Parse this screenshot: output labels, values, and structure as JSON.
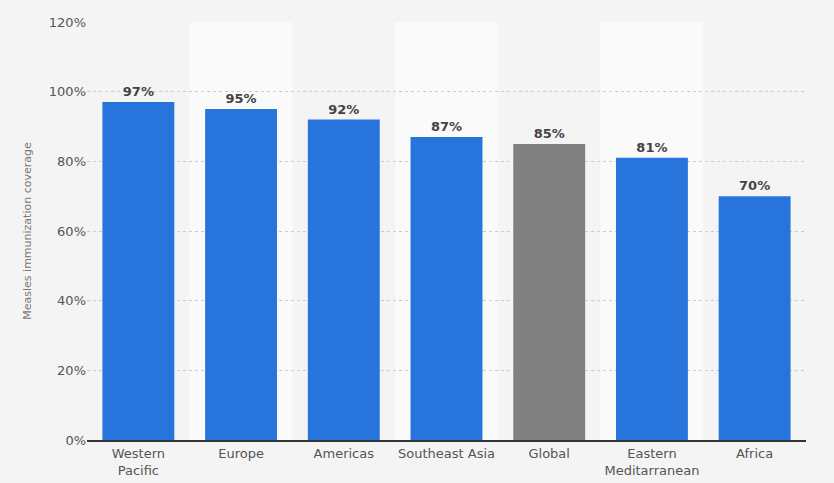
{
  "chart_data": {
    "type": "bar",
    "y_label": "Measles immunization coverage",
    "categories": [
      "Western Pacific",
      "Europe",
      "Americas",
      "Southeast Asia",
      "Global",
      "Eastern Meditarranean",
      "Africa"
    ],
    "values": [
      97,
      95,
      92,
      87,
      85,
      81,
      70
    ],
    "value_labels": [
      "97%",
      "95%",
      "92%",
      "87%",
      "85%",
      "81%",
      "70%"
    ],
    "colors": [
      "#2874dd",
      "#2874dd",
      "#2874dd",
      "#2874dd",
      "#808080",
      "#2874dd",
      "#2874dd"
    ],
    "ylim": [
      0,
      120
    ],
    "yticks": [
      {
        "value": 0,
        "label": "0%"
      },
      {
        "value": 20,
        "label": "20%"
      },
      {
        "value": 40,
        "label": "40%"
      },
      {
        "value": 60,
        "label": "60%"
      },
      {
        "value": 80,
        "label": "80%"
      },
      {
        "value": 100,
        "label": "100%"
      },
      {
        "value": 120,
        "label": "120%"
      }
    ],
    "grid": true,
    "data_labels": true
  }
}
